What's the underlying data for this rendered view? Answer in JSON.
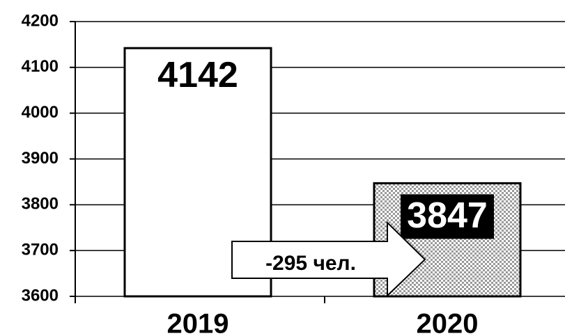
{
  "chart_data": {
    "type": "bar",
    "categories": [
      "2019",
      "2020"
    ],
    "values": [
      4142,
      3847
    ],
    "colors": [
      "#ffffff",
      "#9a9a9a"
    ],
    "ylim": [
      3600,
      4200
    ],
    "yticks": [
      3600,
      3700,
      3800,
      3900,
      4000,
      4100,
      4200
    ],
    "grid": true,
    "annotation": "-295 чел."
  }
}
